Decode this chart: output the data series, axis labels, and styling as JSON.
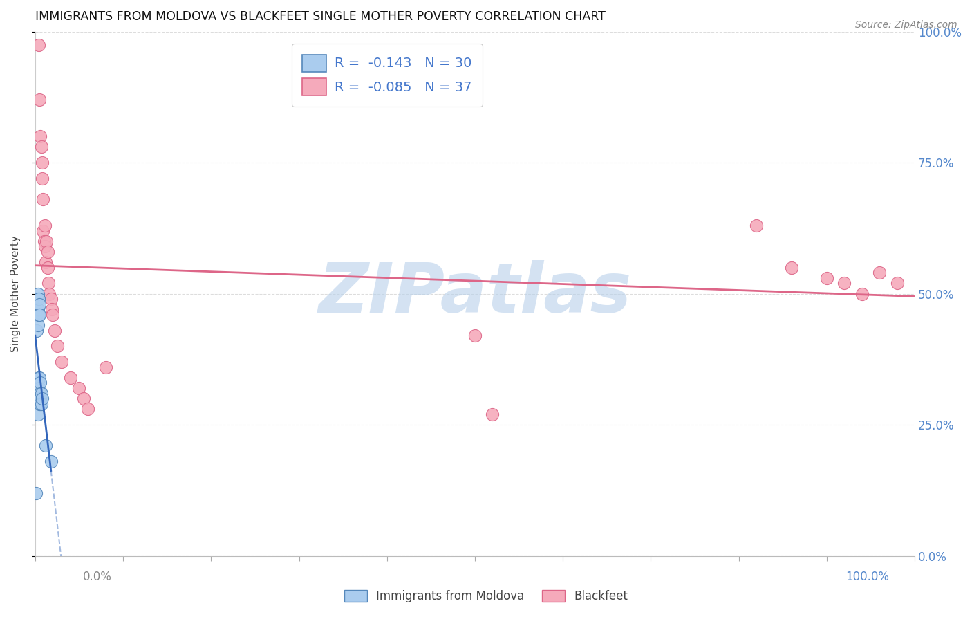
{
  "title": "IMMIGRANTS FROM MOLDOVA VS BLACKFEET SINGLE MOTHER POVERTY CORRELATION CHART",
  "source": "Source: ZipAtlas.com",
  "ylabel": "Single Mother Poverty",
  "moldova_color": "#aaccee",
  "moldova_edge": "#5588bb",
  "blackfeet_color": "#f5aabb",
  "blackfeet_edge": "#dd6688",
  "moldova_trend_color": "#3366bb",
  "blackfeet_trend_color": "#dd6688",
  "watermark": "ZIPatlas",
  "watermark_color": "#b8d0ea",
  "background_color": "#ffffff",
  "grid_color": "#dddddd",
  "moldova_R": -0.143,
  "moldova_N": 30,
  "blackfeet_R": -0.085,
  "blackfeet_N": 37,
  "moldova_x": [
    0.001,
    0.002,
    0.002,
    0.002,
    0.003,
    0.003,
    0.003,
    0.003,
    0.003,
    0.004,
    0.004,
    0.004,
    0.004,
    0.004,
    0.005,
    0.005,
    0.005,
    0.005,
    0.005,
    0.005,
    0.005,
    0.006,
    0.006,
    0.006,
    0.006,
    0.007,
    0.007,
    0.008,
    0.012,
    0.018
  ],
  "moldova_y": [
    0.12,
    0.49,
    0.46,
    0.43,
    0.5,
    0.47,
    0.44,
    0.3,
    0.27,
    0.49,
    0.46,
    0.34,
    0.32,
    0.3,
    0.48,
    0.46,
    0.34,
    0.32,
    0.31,
    0.3,
    0.29,
    0.33,
    0.31,
    0.3,
    0.29,
    0.31,
    0.29,
    0.3,
    0.21,
    0.18
  ],
  "blackfeet_x": [
    0.004,
    0.005,
    0.006,
    0.007,
    0.008,
    0.008,
    0.009,
    0.009,
    0.01,
    0.011,
    0.011,
    0.012,
    0.013,
    0.014,
    0.014,
    0.015,
    0.016,
    0.018,
    0.019,
    0.02,
    0.022,
    0.025,
    0.03,
    0.04,
    0.05,
    0.055,
    0.06,
    0.08,
    0.5,
    0.52,
    0.82,
    0.86,
    0.9,
    0.92,
    0.94,
    0.96,
    0.98
  ],
  "blackfeet_y": [
    0.975,
    0.87,
    0.8,
    0.78,
    0.75,
    0.72,
    0.68,
    0.62,
    0.6,
    0.63,
    0.59,
    0.56,
    0.6,
    0.58,
    0.55,
    0.52,
    0.5,
    0.49,
    0.47,
    0.46,
    0.43,
    0.4,
    0.37,
    0.34,
    0.32,
    0.3,
    0.28,
    0.36,
    0.42,
    0.27,
    0.63,
    0.55,
    0.53,
    0.52,
    0.5,
    0.54,
    0.52
  ],
  "ytick_values": [
    0.0,
    0.25,
    0.5,
    0.75,
    1.0
  ],
  "ytick_labels_left": [
    "",
    "",
    "",
    "",
    ""
  ],
  "ytick_labels_right": [
    "0.0%",
    "25.0%",
    "50.0%",
    "75.0%",
    "100.0%"
  ]
}
